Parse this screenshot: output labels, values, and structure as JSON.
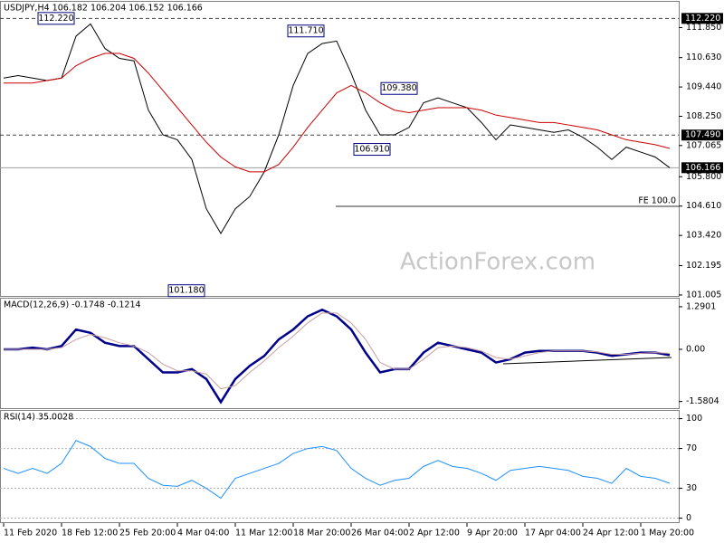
{
  "chart_data": [
    {
      "type": "line",
      "title": "USDJPY,H4 106.182 106.204 106.152 106.166",
      "series": [
        {
          "color": "#000000",
          "values": [
            109.8,
            109.9,
            109.8,
            109.7,
            109.8,
            111.5,
            112.0,
            111.0,
            110.6,
            110.5,
            108.5,
            107.5,
            107.3,
            106.5,
            104.5,
            103.5,
            104.5,
            105.0,
            106.0,
            107.5,
            109.5,
            110.8,
            111.2,
            111.3,
            110.0,
            108.5,
            107.5,
            107.5,
            107.8,
            108.8,
            109.0,
            108.8,
            108.6,
            108.0,
            107.3,
            107.9,
            107.8,
            107.7,
            107.6,
            107.7,
            107.4,
            107.0,
            106.5,
            107.0,
            106.8,
            106.6,
            106.166
          ]
        },
        {
          "color": "#cc0000",
          "values": [
            109.6,
            109.6,
            109.6,
            109.7,
            109.8,
            110.3,
            110.6,
            110.8,
            110.8,
            110.6,
            110.0,
            109.3,
            108.6,
            107.9,
            107.2,
            106.6,
            106.2,
            106.0,
            106.0,
            106.3,
            107.0,
            107.8,
            108.5,
            109.2,
            109.5,
            109.2,
            108.8,
            108.5,
            108.4,
            108.5,
            108.6,
            108.6,
            108.6,
            108.5,
            108.3,
            108.2,
            108.1,
            108.0,
            108.0,
            107.9,
            107.8,
            107.7,
            107.5,
            107.3,
            107.2,
            107.1,
            106.95
          ]
        }
      ],
      "ylim": [
        100.93,
        112.82
      ],
      "yticks": [
        {
          "value": 111.85,
          "label": "111.850"
        },
        {
          "value": 110.63,
          "label": "110.630"
        },
        {
          "value": 109.44,
          "label": "109.440"
        },
        {
          "value": 108.25,
          "label": "108.250"
        },
        107.065,
        {
          "value": 105.8,
          "label": "105.800"
        },
        {
          "value": 104.61,
          "label": "104.610"
        },
        {
          "value": 103.42,
          "label": "103.420"
        },
        102.195,
        101.005
      ],
      "levels": [
        {
          "value": 112.22,
          "label": "112.220",
          "style": "dashed"
        },
        {
          "value": 107.49,
          "label": "107.490",
          "style": "dashed"
        },
        {
          "value": 106.166,
          "style": "solid"
        }
      ],
      "annotations": [
        {
          "value": 112.22,
          "label": "112.220"
        },
        {
          "value": 111.71,
          "label": "111.710"
        },
        {
          "value": 109.38,
          "label": "109.380"
        },
        {
          "value": 106.91,
          "label": "106.910"
        },
        {
          "value": 101.18,
          "label": "101.180"
        }
      ],
      "fe_line": {
        "value": 104.6,
        "label": "FE 100.0"
      },
      "watermark": "ActionForex.com"
    },
    {
      "type": "line",
      "title": "MACD(12,26,9) -0.1748 -0.1214",
      "series": [
        {
          "color": "#00008b",
          "width": 2.5,
          "values": [
            0,
            0,
            0.05,
            0,
            0.1,
            0.6,
            0.5,
            0.2,
            0.1,
            0.1,
            -0.3,
            -0.7,
            -0.7,
            -0.6,
            -0.9,
            -1.6,
            -0.9,
            -0.5,
            -0.2,
            0.3,
            0.6,
            1.0,
            1.2,
            1.0,
            0.6,
            -0.1,
            -0.7,
            -0.6,
            -0.6,
            -0.1,
            0.2,
            0.1,
            0,
            -0.1,
            -0.4,
            -0.3,
            -0.1,
            -0.05,
            -0.05,
            -0.05,
            -0.05,
            -0.1,
            -0.2,
            -0.15,
            -0.1,
            -0.1,
            -0.1748
          ]
        },
        {
          "color": "#c8a0a0",
          "width": 1,
          "values": [
            0,
            0,
            0,
            0,
            0.05,
            0.3,
            0.45,
            0.35,
            0.2,
            0.1,
            -0.1,
            -0.45,
            -0.65,
            -0.65,
            -0.75,
            -1.2,
            -1.1,
            -0.7,
            -0.35,
            0.05,
            0.4,
            0.8,
            1.1,
            1.1,
            0.8,
            0.3,
            -0.4,
            -0.6,
            -0.6,
            -0.3,
            0.05,
            0.1,
            0.05,
            -0.05,
            -0.25,
            -0.3,
            -0.2,
            -0.1,
            -0.05,
            -0.05,
            -0.05,
            -0.08,
            -0.15,
            -0.15,
            -0.12,
            -0.1,
            -0.1214
          ]
        }
      ],
      "ylim": [
        -1.81,
        1.48
      ],
      "yticks": [
        1.2901,
        {
          "value": 0,
          "label": "0.00"
        },
        -1.5804
      ],
      "grid": false
    },
    {
      "type": "line",
      "title": "RSI(14) 35.0028",
      "categories": [
        "11 Feb 2020",
        null,
        null,
        null,
        "18 Feb 12:00",
        null,
        null,
        null,
        "25 Feb 20:00",
        null,
        null,
        null,
        "4 Mar 04:00",
        null,
        null,
        null,
        "11 Mar 12:00",
        null,
        null,
        null,
        "18 Mar 20:00",
        null,
        null,
        null,
        "26 Mar 04:00",
        null,
        null,
        null,
        "2 Apr 12:00",
        null,
        null,
        null,
        "9 Apr 20:00",
        null,
        null,
        null,
        "17 Apr 04:00",
        null,
        null,
        null,
        "24 Apr 12:00",
        null,
        null,
        null,
        "1 May 20:00",
        null,
        null
      ],
      "series": [
        {
          "color": "#1e90ff",
          "width": 1,
          "values": [
            50,
            45,
            50,
            45,
            55,
            78,
            72,
            60,
            55,
            55,
            40,
            33,
            32,
            38,
            30,
            20,
            40,
            45,
            50,
            55,
            65,
            70,
            72,
            68,
            50,
            40,
            33,
            38,
            40,
            52,
            58,
            52,
            50,
            45,
            38,
            48,
            50,
            52,
            50,
            48,
            42,
            40,
            35,
            50,
            42,
            40,
            35.0028
          ]
        }
      ],
      "ylim": [
        -5,
        106
      ],
      "yticks": [
        100,
        70,
        30,
        0
      ],
      "grid": true
    }
  ]
}
